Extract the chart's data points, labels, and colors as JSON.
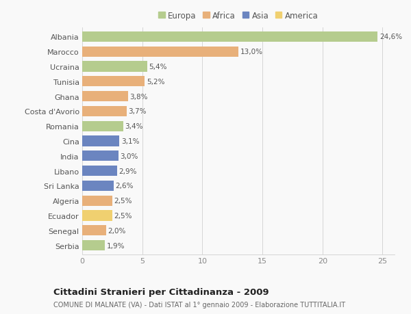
{
  "countries": [
    "Albania",
    "Marocco",
    "Ucraina",
    "Tunisia",
    "Ghana",
    "Costa d'Avorio",
    "Romania",
    "Cina",
    "India",
    "Libano",
    "Sri Lanka",
    "Algeria",
    "Ecuador",
    "Senegal",
    "Serbia"
  ],
  "values": [
    24.6,
    13.0,
    5.4,
    5.2,
    3.8,
    3.7,
    3.4,
    3.1,
    3.0,
    2.9,
    2.6,
    2.5,
    2.5,
    2.0,
    1.9
  ],
  "labels": [
    "24,6%",
    "13,0%",
    "5,4%",
    "5,2%",
    "3,8%",
    "3,7%",
    "3,4%",
    "3,1%",
    "3,0%",
    "2,9%",
    "2,6%",
    "2,5%",
    "2,5%",
    "2,0%",
    "1,9%"
  ],
  "continents": [
    "Europa",
    "Africa",
    "Europa",
    "Africa",
    "Africa",
    "Africa",
    "Europa",
    "Asia",
    "Asia",
    "Asia",
    "Asia",
    "Africa",
    "America",
    "Africa",
    "Europa"
  ],
  "colors": {
    "Europa": "#b5cc8e",
    "Africa": "#e8b07a",
    "Asia": "#6b85c0",
    "America": "#f0d070"
  },
  "legend_order": [
    "Europa",
    "Africa",
    "Asia",
    "America"
  ],
  "xlim": [
    0,
    26
  ],
  "xticks": [
    0,
    5,
    10,
    15,
    20,
    25
  ],
  "title": "Cittadini Stranieri per Cittadinanza - 2009",
  "subtitle": "COMUNE DI MALNATE (VA) - Dati ISTAT al 1° gennaio 2009 - Elaborazione TUTTITALIA.IT",
  "background_color": "#f9f9f9",
  "grid_color": "#d0d0d0",
  "bar_height": 0.7
}
